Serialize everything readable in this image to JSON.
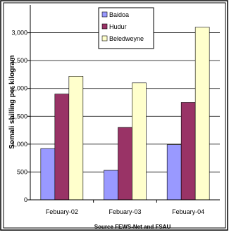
{
  "chart_data": {
    "type": "bar",
    "title": "",
    "categories": [
      "Febuary-02",
      "Febuary-03",
      "Febuary-04"
    ],
    "series": [
      {
        "name": "Baidoa",
        "values": [
          920,
          530,
          990
        ],
        "color": "#9999FF"
      },
      {
        "name": "Hudur",
        "values": [
          1900,
          1300,
          1750
        ],
        "color": "#993366"
      },
      {
        "name": "Beledweyne",
        "values": [
          2220,
          2100,
          3100
        ],
        "color": "#FFFFCC"
      }
    ],
    "yticks": [
      "0",
      "500",
      "1,000",
      "1,500",
      "2,000",
      "2,500",
      "3,000"
    ],
    "ylim": [
      0,
      3500
    ],
    "xlabel": "",
    "ylabel": "Somali shilling per kilogram",
    "source": "Source FEWS-Net and FSAU",
    "grid": true,
    "legend_position": "top-left inside plot"
  }
}
